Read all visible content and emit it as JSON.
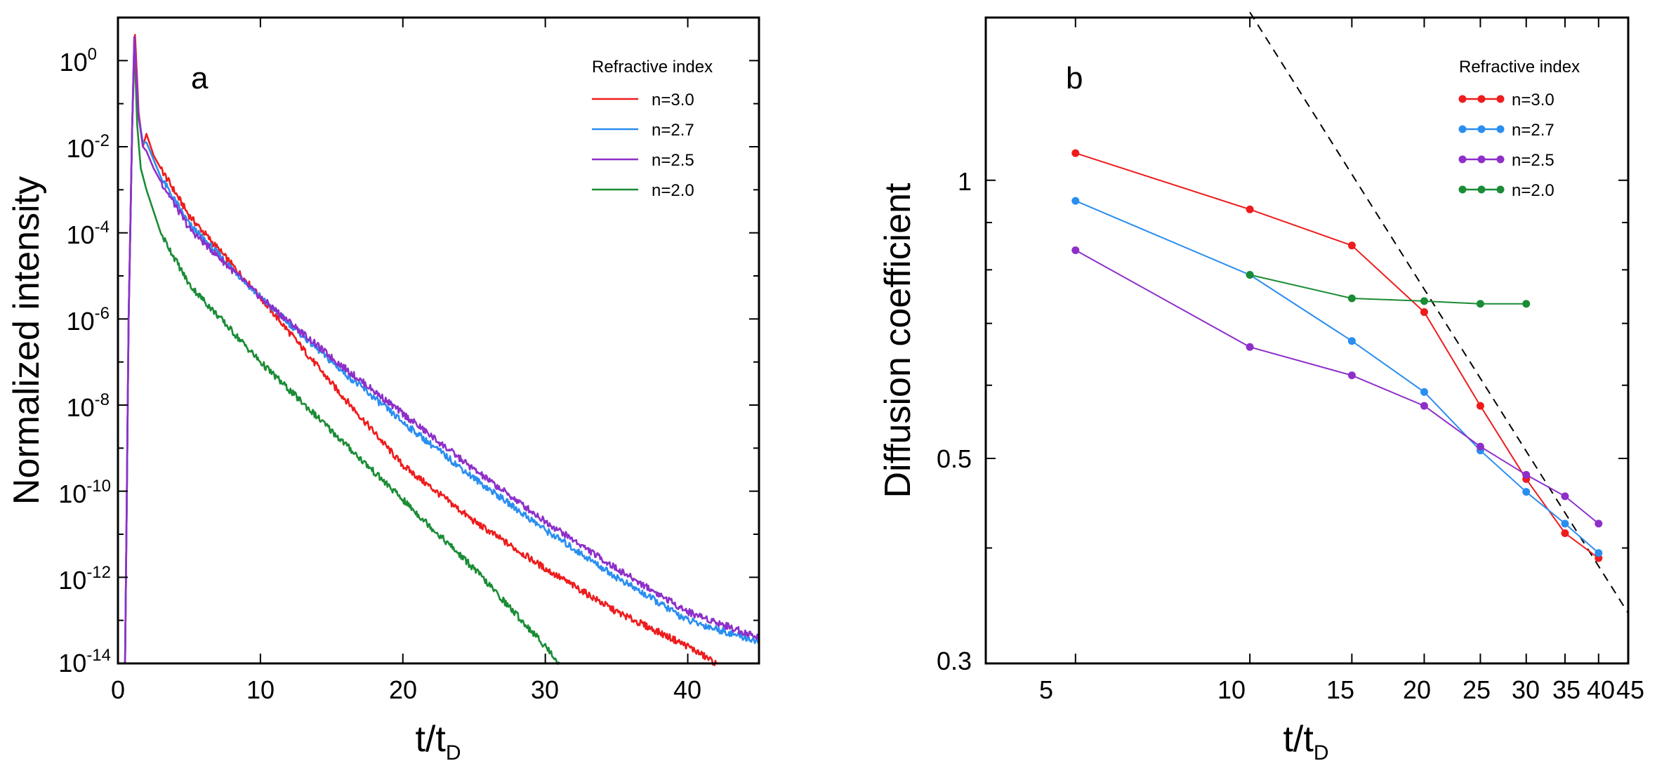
{
  "chart_data": [
    {
      "type": "line",
      "panel_label": "a",
      "xlabel": "t/t",
      "xlabel_sub": "D",
      "ylabel": "Normalized intensity",
      "yscale": "log",
      "xlim": [
        0,
        45
      ],
      "ylim_exponent": [
        -14,
        1
      ],
      "x_ticks": [
        "0",
        "10",
        "20",
        "30",
        "40"
      ],
      "y_ticks": [
        {
          "base": "10",
          "exp": "0"
        },
        {
          "base": "10",
          "exp": "-2"
        },
        {
          "base": "10",
          "exp": "-4"
        },
        {
          "base": "10",
          "exp": "-6"
        },
        {
          "base": "10",
          "exp": "-8"
        },
        {
          "base": "10",
          "exp": "-10"
        },
        {
          "base": "10",
          "exp": "-12"
        },
        {
          "base": "10",
          "exp": "-14"
        }
      ],
      "legend_title": "Refractive index",
      "legend_position": "top-right",
      "series": [
        {
          "name": "n=3.0",
          "color": "#ee1c1c",
          "log10_points": [
            [
              0.5,
              -14
            ],
            [
              0.75,
              -6
            ],
            [
              1.0,
              -1.5
            ],
            [
              1.2,
              0.6
            ],
            [
              1.45,
              -1.2
            ],
            [
              1.75,
              -2.0
            ],
            [
              2.0,
              -1.7
            ],
            [
              2.5,
              -2.2
            ],
            [
              3,
              -2.5
            ],
            [
              5,
              -3.6
            ],
            [
              10,
              -5.5
            ],
            [
              15,
              -7.5
            ],
            [
              20,
              -9.4
            ],
            [
              25,
              -10.7
            ],
            [
              30,
              -11.8
            ],
            [
              35,
              -12.8
            ],
            [
              40,
              -13.6
            ],
            [
              42,
              -14.0
            ]
          ]
        },
        {
          "name": "n=2.7",
          "color": "#2a8ef0",
          "log10_points": [
            [
              0.5,
              -14
            ],
            [
              0.75,
              -6
            ],
            [
              1.0,
              -1.5
            ],
            [
              1.15,
              0.55
            ],
            [
              1.45,
              -1.3
            ],
            [
              1.75,
              -1.9
            ],
            [
              2.0,
              -1.9
            ],
            [
              2.5,
              -2.3
            ],
            [
              3,
              -2.7
            ],
            [
              5,
              -3.8
            ],
            [
              10,
              -5.5
            ],
            [
              15,
              -7.0
            ],
            [
              20,
              -8.4
            ],
            [
              25,
              -9.7
            ],
            [
              30,
              -10.9
            ],
            [
              35,
              -12.0
            ],
            [
              40,
              -13.0
            ],
            [
              45,
              -13.5
            ]
          ]
        },
        {
          "name": "n=2.5",
          "color": "#8e2fc9",
          "log10_points": [
            [
              0.5,
              -14
            ],
            [
              0.75,
              -6
            ],
            [
              1.0,
              -1.5
            ],
            [
              1.15,
              0.55
            ],
            [
              1.45,
              -1.3
            ],
            [
              1.75,
              -2.0
            ],
            [
              2.0,
              -2.1
            ],
            [
              2.5,
              -2.5
            ],
            [
              3,
              -2.8
            ],
            [
              5,
              -3.9
            ],
            [
              10,
              -5.5
            ],
            [
              15,
              -6.9
            ],
            [
              20,
              -8.2
            ],
            [
              25,
              -9.5
            ],
            [
              30,
              -10.7
            ],
            [
              35,
              -11.8
            ],
            [
              40,
              -12.8
            ],
            [
              45,
              -13.4
            ]
          ]
        },
        {
          "name": "n=2.0",
          "color": "#1a8c35",
          "log10_points": [
            [
              0.5,
              -14
            ],
            [
              0.75,
              -6
            ],
            [
              1.0,
              -1.5
            ],
            [
              1.15,
              0.5
            ],
            [
              1.35,
              -1.5
            ],
            [
              1.6,
              -2.5
            ],
            [
              2.0,
              -3.0
            ],
            [
              2.5,
              -3.5
            ],
            [
              3,
              -4.0
            ],
            [
              5,
              -5.2
            ],
            [
              10,
              -7.0
            ],
            [
              15,
              -8.6
            ],
            [
              20,
              -10.2
            ],
            [
              25,
              -11.8
            ],
            [
              30,
              -13.6
            ],
            [
              31,
              -14.0
            ]
          ]
        }
      ]
    },
    {
      "type": "line",
      "panel_label": "b",
      "xlabel": "t/t",
      "xlabel_sub": "D",
      "ylabel": "Diffusion coefficient",
      "xscale": "log",
      "yscale": "log",
      "xlim": [
        3.5,
        45
      ],
      "ylim": [
        0.3,
        1.5
      ],
      "x_ticks": [
        "5",
        "10",
        "15",
        "20",
        "25",
        "30",
        "35",
        "40",
        "45"
      ],
      "y_ticks": [
        "0.3",
        "0.5",
        "1"
      ],
      "legend_title": "Refractive index",
      "legend_position": "top-right",
      "series": [
        {
          "name": "n=3.0",
          "color": "#ee1c1c",
          "x": [
            5,
            10,
            15,
            20,
            25,
            30,
            35,
            40
          ],
          "y": [
            1.07,
            0.93,
            0.85,
            0.72,
            0.57,
            0.475,
            0.415,
            0.39
          ]
        },
        {
          "name": "n=2.7",
          "color": "#2a8ef0",
          "x": [
            5,
            10,
            15,
            20,
            25,
            30,
            35,
            40
          ],
          "y": [
            0.95,
            0.79,
            0.67,
            0.59,
            0.51,
            0.46,
            0.425,
            0.395
          ]
        },
        {
          "name": "n=2.5",
          "color": "#8e2fc9",
          "x": [
            5,
            10,
            15,
            20,
            25,
            30,
            35,
            40
          ],
          "y": [
            0.84,
            0.66,
            0.615,
            0.57,
            0.515,
            0.48,
            0.455,
            0.425
          ]
        },
        {
          "name": "n=2.0",
          "color": "#1a8c35",
          "x": [
            10,
            15,
            20,
            25,
            30
          ],
          "y": [
            0.79,
            0.745,
            0.74,
            0.735,
            0.735
          ]
        }
      ],
      "reference_line": {
        "style": "dashed",
        "color": "#000000",
        "x": [
          10,
          45
        ],
        "y": [
          1.52,
          0.34
        ]
      }
    }
  ]
}
